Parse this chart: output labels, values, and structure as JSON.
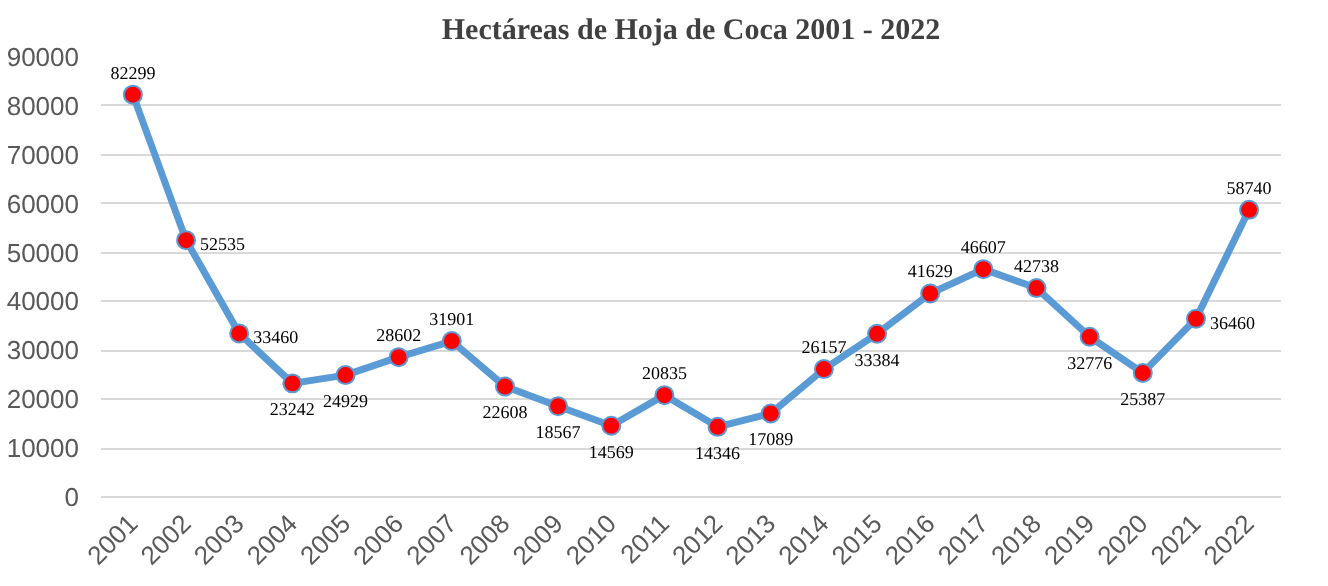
{
  "chart_data": {
    "type": "line",
    "title": "Hectáreas de Hoja de Coca 2001 - 2022",
    "categories": [
      "2001",
      "2002",
      "2003",
      "2004",
      "2005",
      "2006",
      "2007",
      "2008",
      "2009",
      "2010",
      "2011",
      "2012",
      "2013",
      "2014",
      "2015",
      "2016",
      "2017",
      "2018",
      "2019",
      "2020",
      "2021",
      "2022"
    ],
    "series": [
      {
        "color": "#5b9bd5",
        "values": [
          82299,
          52535,
          33460,
          23242,
          24929,
          28602,
          31901,
          22608,
          18567,
          14569,
          20835,
          14346,
          17089,
          26157,
          33384,
          41629,
          46607,
          42738,
          32776,
          25387,
          36460,
          58740
        ],
        "colors": [
          "#ff0000",
          "#ff0000",
          "#ff0000",
          "#ff0000",
          "#ff0000",
          "#ff0000",
          "#ff0000",
          "#ff0000",
          "#ff0000",
          "#ff0000",
          "#ff0000",
          "#ff0000",
          "#ff0000",
          "#ff0000",
          "#ff0000",
          "#ff0000",
          "#ff0000",
          "#ff0000",
          "#ff0000",
          "#ff0000",
          "#ff0000",
          "#ff0000"
        ]
      }
    ],
    "ylim": [
      0,
      90000
    ],
    "yticks": [
      0,
      10000,
      20000,
      30000,
      40000,
      50000,
      60000,
      70000,
      80000,
      90000
    ],
    "grid": "y",
    "marker": "circle",
    "line_style": "solid",
    "data_labels": true
  }
}
